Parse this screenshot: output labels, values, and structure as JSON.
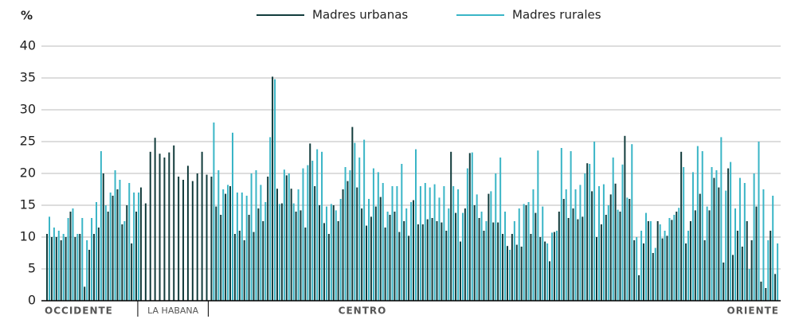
{
  "chart_data": {
    "type": "bar",
    "y_label": "%",
    "regions": [
      "OCCIDENTE",
      "LA HABANA",
      "CENTRO",
      "ORIENTE"
    ],
    "ylim": [
      0,
      40
    ],
    "yticks": [
      0,
      5,
      10,
      15,
      20,
      25,
      30,
      35,
      40
    ],
    "grid": true,
    "legend": "top",
    "series": [
      {
        "name": "Madres urbanas",
        "color": "#123c3c",
        "values": [
          10.5,
          10,
          10,
          9.5,
          10,
          14,
          10,
          10.5,
          2.2,
          8,
          10.5,
          11.5,
          20,
          14,
          16.5,
          17.5,
          12,
          15,
          9,
          14,
          17.8,
          15.3,
          23.4,
          25.6,
          23.1,
          22.5,
          23.3,
          24.4,
          19.5,
          19,
          21.2,
          18.8,
          20,
          23.4,
          19.8,
          19.5,
          14.8,
          13.5,
          16.8,
          18,
          10.5,
          11,
          9.5,
          13.5,
          10.8,
          14.5,
          12.5,
          19.5,
          35.2,
          17.6,
          15.3,
          19.7,
          17.6,
          14,
          14.2,
          11.5,
          24.7,
          18,
          15,
          12.2,
          10.5,
          15,
          12.5,
          17.5,
          18.8,
          27.3,
          17.8,
          14.5,
          11.8,
          13.2,
          14.8,
          16.3,
          11.5,
          13.5,
          14,
          10.8,
          12.5,
          10.2,
          15.8,
          12,
          12,
          12.8,
          13,
          12.5,
          12.3,
          11,
          23.4,
          13.8,
          9.3,
          14.5,
          23.2,
          15,
          13,
          11,
          16.8,
          12.3,
          12.3,
          10.5,
          8.6,
          10.5,
          8.8,
          8.5,
          15,
          10.5,
          13.8,
          10,
          9.3,
          6.2,
          10.8,
          14,
          16,
          13,
          14.5,
          12.8,
          13.2,
          21.6,
          17.2,
          10,
          12,
          13.5,
          16.7,
          18.4,
          14,
          25.9,
          16,
          9.5,
          4,
          9,
          12.5,
          7.5,
          12.5,
          9.8,
          10.2,
          12.7,
          14,
          23.4,
          9,
          12.5,
          14.2,
          16.8,
          9.5,
          14.2,
          19.3,
          17.8,
          6,
          20.8,
          7.2,
          11,
          8.5,
          12.5,
          9.5,
          14.8,
          3,
          2,
          11,
          4.2
        ]
      },
      {
        "name": "Madres rurales",
        "color": "#3ab5c6",
        "values": [
          13.2,
          11.5,
          11,
          10.5,
          13,
          14.5,
          10.5,
          13,
          9.5,
          13,
          15.5,
          23.5,
          15,
          17,
          20.5,
          19,
          12.5,
          18.5,
          17,
          17,
          null,
          null,
          null,
          null,
          null,
          null,
          null,
          null,
          null,
          null,
          null,
          null,
          null,
          null,
          null,
          28,
          20.5,
          17.5,
          18.2,
          26.4,
          17,
          17,
          16.5,
          20,
          20.5,
          18.2,
          15.5,
          25.7,
          34.8,
          15.2,
          20.6,
          20,
          15.3,
          17.5,
          20.8,
          21.3,
          22,
          23.8,
          23.4,
          14.8,
          15.2,
          14.2,
          16,
          21,
          20.5,
          24.8,
          22.5,
          25.3,
          16,
          20.8,
          20.2,
          18.5,
          14,
          18,
          18,
          21.5,
          14.5,
          15.5,
          23.8,
          18,
          18.5,
          17.8,
          18.3,
          16.2,
          18,
          14.5,
          18,
          17.5,
          13.8,
          20.8,
          23.3,
          16.7,
          14,
          12.5,
          17.2,
          20,
          22.5,
          14,
          8,
          12.5,
          14.5,
          15.2,
          15.5,
          17.5,
          23.6,
          14.8,
          9,
          10.7,
          11,
          24,
          17.5,
          23.5,
          17.5,
          18.2,
          20,
          21.5,
          25,
          18,
          18.3,
          15,
          22.5,
          14.3,
          21.4,
          16.2,
          24.6,
          10,
          11,
          13.8,
          12.5,
          8.3,
          12,
          11,
          13,
          13.5,
          14.6,
          21,
          11,
          20.2,
          24.3,
          23.5,
          14.8,
          21,
          20.5,
          25.7,
          17.3,
          21.8,
          14.5,
          19.3,
          18.5,
          5,
          20,
          25,
          17.5,
          9.5,
          16.5,
          9
        ]
      }
    ]
  }
}
